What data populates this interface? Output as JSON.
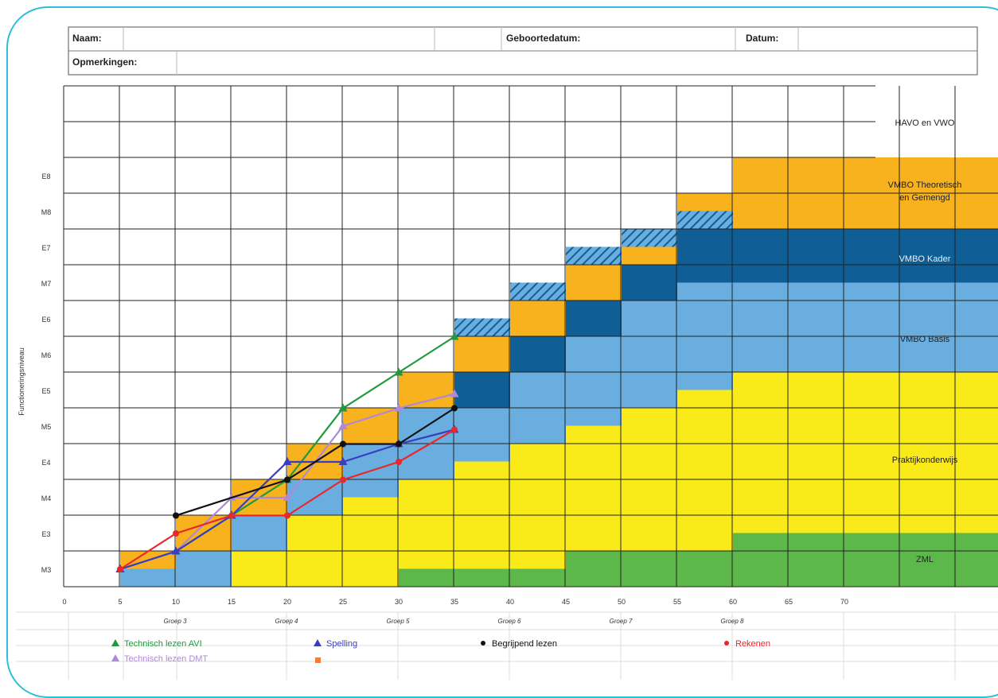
{
  "header": {
    "naam_label": "Naam:",
    "geboortedatum_label": "Geboortedatum:",
    "datum_label": "Datum:",
    "opmerkingen_label": "Opmerkingen:"
  },
  "chart_data": {
    "type": "line",
    "ylabel": "Functioneringsniveau",
    "y_levels": [
      "M3",
      "E3",
      "M4",
      "E4",
      "M5",
      "E5",
      "M6",
      "E6",
      "M7",
      "E7",
      "M8",
      "E8"
    ],
    "x_ticks": [
      0,
      5,
      10,
      15,
      20,
      25,
      30,
      35,
      40,
      45,
      50,
      55,
      60,
      65,
      70
    ],
    "groups": [
      "Groep 3",
      "Groep 4",
      "Groep 5",
      "Groep 6",
      "Groep 7",
      "Groep 8"
    ],
    "band_labels": {
      "havo": "HAVO en VWO",
      "theoretisch": "VMBO Theoretisch en Gemengd",
      "kader": "VMBO Kader",
      "basis": "VMBO Basis",
      "praktijk": "Praktijkonderwijs",
      "zml": "ZML"
    },
    "colors": {
      "havo": "#ffffff",
      "theoretisch": "#f7b21e",
      "kader": "#0f5f96",
      "basis": "#6aaee0",
      "praktijk": "#fbea1a",
      "zml": "#5cb84a"
    },
    "series": [
      {
        "name": "Technisch lezen AVI",
        "color": "#1f9a3d",
        "marker": "triangle",
        "x": [
          5,
          10,
          15,
          20,
          25,
          30,
          35
        ],
        "y": [
          0,
          0.5,
          1.5,
          2.5,
          4.5,
          5.5,
          6.5
        ]
      },
      {
        "name": "Technisch lezen DMT",
        "color": "#b089d6",
        "marker": "triangle",
        "x": [
          5,
          10,
          15,
          20,
          25,
          30,
          35
        ],
        "y": [
          0,
          0.5,
          2,
          2,
          4,
          4.5,
          4.9
        ]
      },
      {
        "name": "Spelling",
        "color": "#3a3dbd",
        "marker": "triangle",
        "x": [
          5,
          10,
          15,
          20,
          25,
          30,
          35
        ],
        "y": [
          0,
          0.5,
          1.5,
          3,
          3,
          3.5,
          3.9
        ]
      },
      {
        "name": "Begrijpend lezen",
        "color": "#111111",
        "marker": "circle",
        "x": [
          10,
          20,
          25,
          30,
          35
        ],
        "y": [
          1.5,
          2.5,
          3.5,
          3.5,
          4.5
        ]
      },
      {
        "name": "Rekenen",
        "color": "#e8282c",
        "marker": "circle",
        "x": [
          5,
          10,
          15,
          20,
          25,
          30,
          35
        ],
        "y": [
          0,
          1,
          1.5,
          1.5,
          2.5,
          3,
          3.9
        ]
      }
    ],
    "legend_extra_color": "#ff7b2c"
  }
}
